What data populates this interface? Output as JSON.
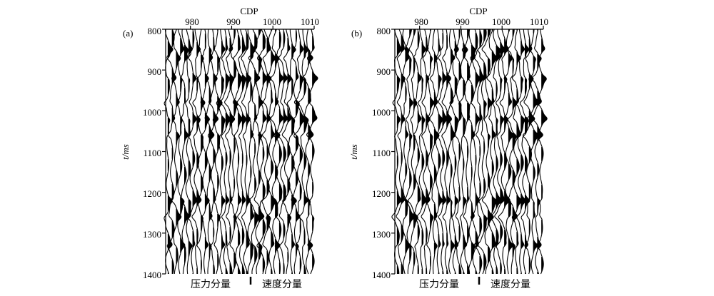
{
  "figure": {
    "panels": [
      {
        "id": "a",
        "label": "(a)",
        "x_title": "CDP",
        "y_title": "t/ms",
        "x_ticks": [
          "980",
          "990",
          "1000",
          "1010"
        ],
        "y_ticks": [
          "800",
          "900",
          "1000",
          "1100",
          "1200",
          "1300",
          "1400"
        ],
        "bottom_left_label": "压力分量",
        "bottom_right_label": "速度分量"
      },
      {
        "id": "b",
        "label": "(b)",
        "x_title": "CDP",
        "y_title": "t/ms",
        "x_ticks": [
          "980",
          "990",
          "1000",
          "1010"
        ],
        "y_ticks": [
          "800",
          "900",
          "1000",
          "1100",
          "1200",
          "1300",
          "1400"
        ],
        "bottom_left_label": "压力分量",
        "bottom_right_label": "速度分量"
      }
    ]
  },
  "chart_data": {
    "type": "seismic-wiggle",
    "x_axis": {
      "label": "CDP",
      "range": [
        974,
        1010
      ],
      "ticks": [
        980,
        990,
        1000,
        1010
      ]
    },
    "y_axis": {
      "label": "t/ms",
      "range": [
        800,
        1400
      ],
      "ticks": [
        800,
        900,
        1000,
        1100,
        1200,
        1300,
        1400
      ],
      "reversed": true
    },
    "split_cdp": 995,
    "sections": [
      "压力分量",
      "速度分量"
    ],
    "strong_events_ms": [
      850,
      870,
      920,
      980,
      1020,
      1060,
      1220,
      1260,
      1330
    ],
    "colors": {
      "trace": "#000000",
      "background": "#ffffff"
    }
  }
}
